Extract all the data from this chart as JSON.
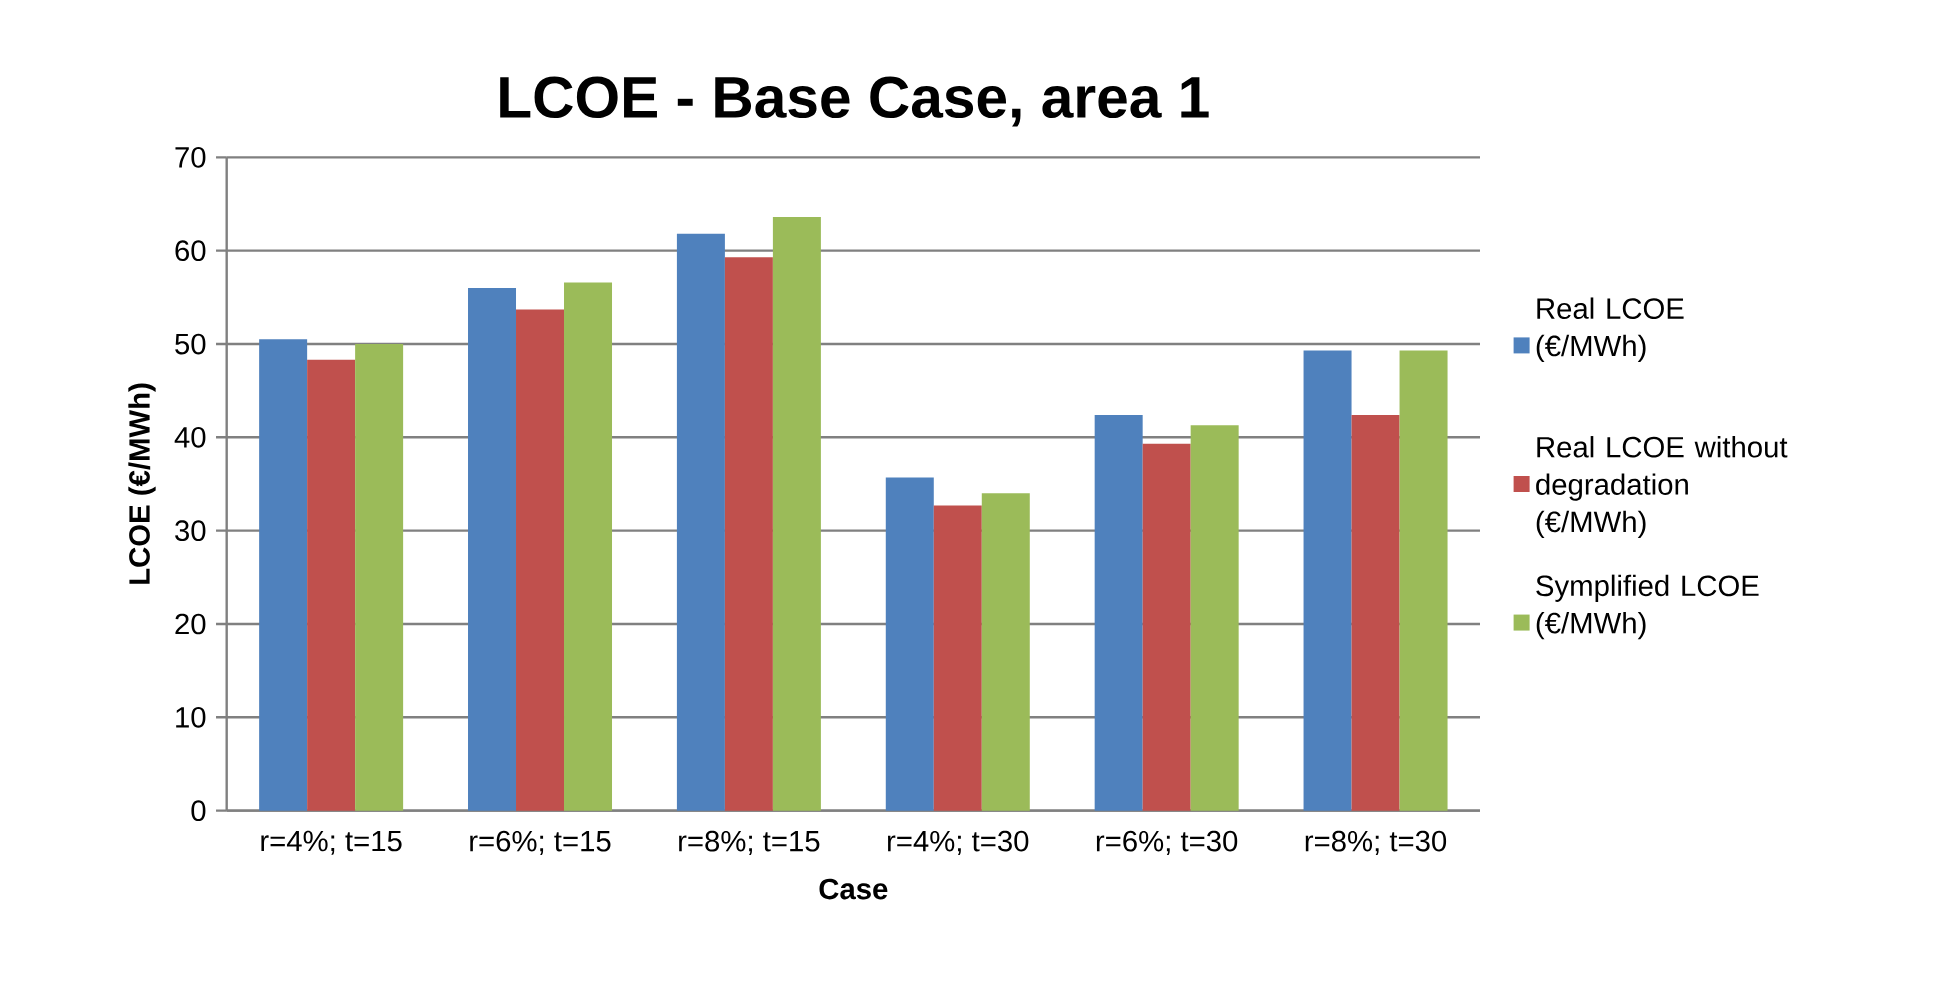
{
  "chart_data": {
    "type": "bar",
    "title": "LCOE - Base Case, area 1",
    "xlabel": "Case",
    "ylabel": "LCOE (€/MWh)",
    "categories": [
      "r=4%; t=15",
      "r=6%; t=15",
      "r=8%; t=15",
      "r=4%; t=30",
      "r=6%; t=30",
      "r=8%; t=30"
    ],
    "series": [
      {
        "name": "Real LCOE (€/MWh)",
        "color": "#4f81bd",
        "values": [
          50.5,
          56.0,
          61.8,
          35.7,
          42.4,
          49.3
        ]
      },
      {
        "name": "Real LCOE without degradation (€/MWh)",
        "color": "#c0504d",
        "values": [
          48.3,
          53.7,
          59.3,
          32.7,
          39.3,
          42.4
        ]
      },
      {
        "name": "Symplified LCOE (€/MWh)",
        "color": "#9bbb59",
        "values": [
          50.0,
          56.6,
          63.6,
          34.0,
          41.3,
          49.3
        ]
      }
    ],
    "ylim": [
      0,
      70
    ],
    "yticks": [
      0,
      10,
      20,
      30,
      40,
      50,
      60,
      70
    ],
    "grid": "y",
    "legend": "right"
  }
}
